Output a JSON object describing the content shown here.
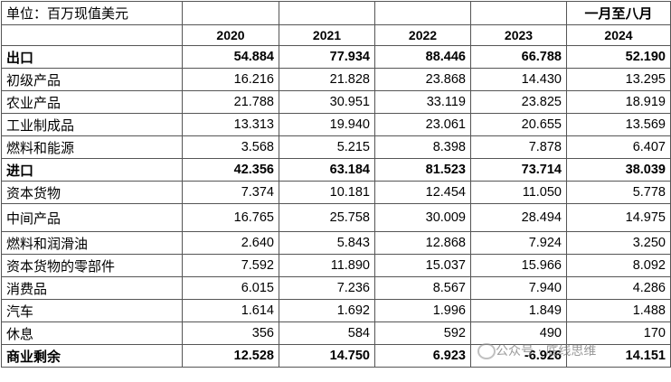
{
  "header": {
    "unit": "单位：百万现值美元",
    "period": "一月至八月"
  },
  "columns": [
    "2020",
    "2021",
    "2022",
    "2023",
    "2024"
  ],
  "rows": [
    {
      "label": "出口",
      "bold": true,
      "values": [
        "54.884",
        "77.934",
        "88.446",
        "66.788",
        "52.190"
      ]
    },
    {
      "label": "初级产品",
      "values": [
        "16.216",
        "21.828",
        "23.868",
        "14.430",
        "13.295"
      ]
    },
    {
      "label": "农业产品",
      "values": [
        "21.788",
        "30.951",
        "33.119",
        "23.825",
        "18.919"
      ]
    },
    {
      "label": "工业制成品",
      "values": [
        "13.313",
        "19.940",
        "23.061",
        "20.655",
        "13.569"
      ]
    },
    {
      "label": "燃料和能源",
      "values": [
        "3.568",
        "5.215",
        "8.398",
        "7.878",
        "6.407"
      ]
    },
    {
      "label": "进口",
      "bold": true,
      "values": [
        "42.356",
        "63.184",
        "81.523",
        "73.714",
        "38.039"
      ]
    },
    {
      "label": "资本货物",
      "values": [
        "7.374",
        "10.181",
        "12.454",
        "11.050",
        "5.778"
      ]
    },
    {
      "label": "中间产品",
      "values": [
        "16.765",
        "25.758",
        "30.009",
        "28.494",
        "14.975"
      ]
    },
    {
      "label": "燃料和润滑油",
      "values": [
        "2.640",
        "5.843",
        "12.868",
        "7.924",
        "3.250"
      ]
    },
    {
      "label": "资本货物的零部件",
      "values": [
        "7.592",
        "11.890",
        "15.037",
        "15.966",
        "8.092"
      ]
    },
    {
      "label": "消费品",
      "values": [
        "6.015",
        "7.236",
        "8.567",
        "7.940",
        "4.286"
      ]
    },
    {
      "label": "汽车",
      "values": [
        "1.614",
        "1.692",
        "1.996",
        "1.849",
        "1.488"
      ]
    },
    {
      "label": "休息",
      "values": [
        "356",
        "584",
        "592",
        "490",
        "170"
      ]
    },
    {
      "label": "商业剩余",
      "bold": true,
      "values": [
        "12.528",
        "14.750",
        "6.923",
        "-6.926",
        "14.151"
      ]
    }
  ],
  "watermark": "公众号 · 底线思维"
}
